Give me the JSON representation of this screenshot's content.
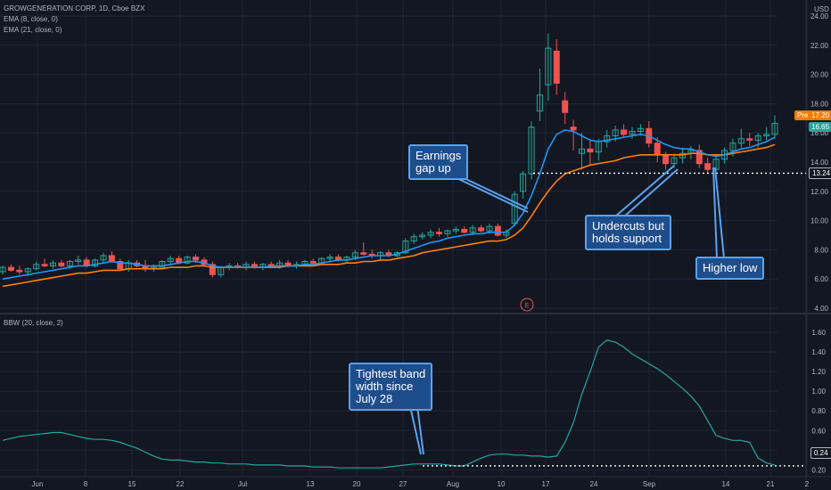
{
  "header": {
    "symbol_line": "GROWGENERATION CORP, 1D, Cboe BZX",
    "indicator_1": "EMA (8, close, 0)",
    "indicator_2": "EMA (21, close, 0)",
    "lower_indicator": "BBW (20, close, 2)",
    "currency": "USD"
  },
  "tags": {
    "pre_label": "Pre",
    "pre_price": "17.20",
    "last_price": "16.65",
    "support_level": "13.24",
    "bbw_level": "0.24"
  },
  "callouts": {
    "earnings": "Earnings\ngap up",
    "undercuts": "Undercuts but\nholds support",
    "higher_low": "Higher low",
    "tightest": "Tightest band\nwidth since\nJuly 28"
  },
  "earnings_marker": "E",
  "colors": {
    "background": "#131722",
    "up": "#26a69a",
    "down": "#ef5350",
    "ema8": "#2196f3",
    "ema21": "#ff7f0e",
    "bbw": "#26a69a",
    "callout_bg": "#1e4d8c",
    "callout_border": "#5aa2f0",
    "pre_tag": "#f57c00",
    "last_tag": "#26a69a"
  },
  "chart_data": [
    {
      "type": "candlestick",
      "y_axis_ticks": [
        "4.00",
        "6.00",
        "8.00",
        "10.00",
        "12.00",
        "14.00",
        "16.00",
        "18.00",
        "20.00",
        "22.00",
        "24.00"
      ],
      "ylim": [
        4,
        24
      ],
      "x_axis_ticks": [
        "Jun",
        "8",
        "15",
        "22",
        "Jul",
        "13",
        "20",
        "27",
        "Aug",
        "10",
        "17",
        "24",
        "Sep",
        "14",
        "21",
        "2"
      ],
      "horizontal_level": 13.24,
      "ohlc": [
        [
          6.5,
          6.9,
          6.3,
          6.8
        ],
        [
          6.8,
          7.0,
          6.5,
          6.6
        ],
        [
          6.6,
          6.9,
          6.3,
          6.5
        ],
        [
          6.5,
          6.8,
          6.2,
          6.7
        ],
        [
          6.7,
          7.2,
          6.6,
          7.0
        ],
        [
          7.0,
          7.4,
          6.8,
          6.9
        ],
        [
          6.9,
          7.3,
          6.7,
          7.1
        ],
        [
          7.1,
          7.3,
          6.8,
          6.9
        ],
        [
          6.9,
          7.3,
          6.7,
          7.2
        ],
        [
          7.2,
          7.6,
          7.0,
          7.3
        ],
        [
          7.3,
          7.5,
          6.8,
          6.9
        ],
        [
          6.9,
          7.4,
          6.8,
          7.3
        ],
        [
          7.3,
          7.8,
          7.1,
          7.6
        ],
        [
          7.6,
          7.9,
          7.1,
          7.2
        ],
        [
          7.2,
          7.4,
          6.6,
          6.7
        ],
        [
          6.7,
          7.3,
          6.5,
          7.1
        ],
        [
          7.1,
          7.3,
          6.8,
          6.9
        ],
        [
          6.9,
          7.3,
          6.5,
          6.7
        ],
        [
          6.7,
          7.0,
          6.5,
          6.8
        ],
        [
          6.8,
          7.3,
          6.8,
          7.2
        ],
        [
          7.2,
          7.6,
          7.0,
          7.4
        ],
        [
          7.4,
          7.6,
          7.0,
          7.1
        ],
        [
          7.1,
          7.6,
          7.0,
          7.5
        ],
        [
          7.5,
          7.7,
          7.1,
          7.3
        ],
        [
          7.3,
          7.5,
          6.9,
          7.0
        ],
        [
          7.0,
          7.2,
          6.1,
          6.3
        ],
        [
          6.3,
          6.9,
          6.1,
          6.8
        ],
        [
          6.8,
          7.1,
          6.6,
          6.9
        ],
        [
          6.9,
          7.1,
          6.7,
          6.8
        ],
        [
          6.8,
          7.2,
          6.6,
          7.0
        ],
        [
          7.0,
          7.2,
          6.7,
          6.8
        ],
        [
          6.8,
          7.1,
          6.6,
          7.0
        ],
        [
          7.0,
          7.2,
          6.8,
          6.9
        ],
        [
          6.9,
          7.3,
          6.7,
          7.1
        ],
        [
          7.1,
          7.3,
          6.8,
          6.9
        ],
        [
          6.9,
          7.2,
          6.7,
          7.0
        ],
        [
          7.0,
          7.3,
          6.9,
          7.2
        ],
        [
          7.2,
          7.4,
          7.0,
          7.1
        ],
        [
          7.1,
          7.5,
          7.0,
          7.4
        ],
        [
          7.4,
          7.7,
          7.2,
          7.5
        ],
        [
          7.5,
          7.7,
          7.2,
          7.3
        ],
        [
          7.3,
          7.6,
          7.1,
          7.5
        ],
        [
          7.5,
          8.0,
          7.3,
          7.8
        ],
        [
          7.8,
          8.5,
          7.6,
          7.7
        ],
        [
          7.7,
          8.0,
          7.4,
          7.6
        ],
        [
          7.6,
          7.9,
          7.3,
          7.8
        ],
        [
          7.8,
          8.0,
          7.5,
          7.6
        ],
        [
          7.6,
          7.9,
          7.5,
          7.8
        ],
        [
          7.8,
          8.8,
          7.7,
          8.6
        ],
        [
          8.6,
          9.1,
          8.4,
          8.9
        ],
        [
          8.9,
          9.2,
          8.7,
          9.0
        ],
        [
          9.0,
          9.4,
          8.8,
          9.2
        ],
        [
          9.2,
          9.5,
          8.9,
          9.1
        ],
        [
          9.1,
          9.4,
          8.9,
          9.3
        ],
        [
          9.3,
          9.6,
          9.1,
          9.4
        ],
        [
          9.4,
          9.6,
          9.1,
          9.2
        ],
        [
          9.2,
          9.7,
          9.0,
          9.5
        ],
        [
          9.5,
          9.7,
          9.2,
          9.3
        ],
        [
          9.3,
          9.8,
          9.1,
          9.6
        ],
        [
          9.6,
          9.8,
          8.9,
          9.0
        ],
        [
          9.0,
          9.4,
          8.8,
          9.2
        ],
        [
          9.8,
          12.0,
          9.6,
          11.8
        ],
        [
          12.0,
          13.4,
          11.5,
          13.2
        ],
        [
          13.2,
          16.8,
          12.8,
          16.4
        ],
        [
          17.5,
          20.4,
          16.8,
          18.6
        ],
        [
          19.3,
          22.8,
          18.2,
          21.8
        ],
        [
          21.6,
          22.4,
          18.6,
          19.4
        ],
        [
          18.2,
          18.8,
          16.6,
          17.4
        ],
        [
          16.4,
          16.9,
          14.8,
          16.2
        ],
        [
          14.6,
          16.0,
          13.5,
          14.9
        ],
        [
          14.9,
          15.6,
          13.8,
          14.7
        ],
        [
          14.7,
          15.6,
          14.1,
          15.4
        ],
        [
          15.4,
          16.2,
          15.0,
          15.8
        ],
        [
          15.8,
          16.5,
          15.4,
          16.2
        ],
        [
          16.2,
          16.6,
          15.7,
          15.9
        ],
        [
          15.9,
          16.4,
          15.6,
          16.1
        ],
        [
          16.1,
          16.6,
          15.8,
          16.3
        ],
        [
          16.3,
          16.8,
          15.0,
          15.3
        ],
        [
          15.3,
          15.7,
          14.0,
          14.5
        ],
        [
          14.5,
          14.7,
          13.5,
          13.9
        ],
        [
          13.9,
          14.6,
          13.6,
          14.3
        ],
        [
          14.3,
          15.0,
          13.9,
          14.6
        ],
        [
          14.6,
          15.1,
          14.2,
          14.8
        ],
        [
          14.8,
          15.2,
          13.6,
          13.9
        ],
        [
          13.9,
          14.3,
          13.2,
          13.5
        ],
        [
          13.5,
          14.4,
          13.3,
          14.2
        ],
        [
          14.2,
          15.0,
          13.9,
          14.8
        ],
        [
          14.8,
          15.6,
          14.4,
          15.3
        ],
        [
          15.3,
          16.3,
          15.0,
          15.6
        ],
        [
          15.6,
          16.0,
          15.1,
          15.5
        ],
        [
          15.5,
          16.0,
          15.0,
          15.8
        ],
        [
          15.8,
          16.4,
          15.5,
          15.9
        ],
        [
          15.9,
          17.2,
          15.6,
          16.65
        ]
      ],
      "ema8": [
        6.0,
        6.1,
        6.2,
        6.3,
        6.4,
        6.5,
        6.6,
        6.7,
        6.8,
        6.9,
        6.9,
        7.0,
        7.1,
        7.2,
        7.1,
        7.1,
        7.0,
        6.9,
        6.9,
        6.9,
        7.0,
        7.1,
        7.2,
        7.2,
        7.1,
        6.9,
        6.8,
        6.8,
        6.8,
        6.8,
        6.8,
        6.8,
        6.9,
        6.9,
        6.9,
        6.9,
        7.0,
        7.0,
        7.1,
        7.2,
        7.3,
        7.3,
        7.4,
        7.5,
        7.6,
        7.6,
        7.6,
        7.7,
        7.9,
        8.1,
        8.3,
        8.5,
        8.6,
        8.8,
        8.9,
        9.0,
        9.1,
        9.1,
        9.2,
        9.2,
        9.2,
        9.7,
        10.5,
        11.7,
        13.2,
        14.9,
        15.9,
        16.2,
        16.1,
        15.8,
        15.5,
        15.4,
        15.5,
        15.6,
        15.7,
        15.8,
        15.9,
        15.8,
        15.5,
        15.2,
        15.0,
        14.9,
        14.9,
        14.7,
        14.5,
        14.4,
        14.5,
        14.7,
        14.9,
        15.0,
        15.2,
        15.4,
        15.7
      ],
      "ema21": [
        5.5,
        5.6,
        5.7,
        5.8,
        5.9,
        6.0,
        6.1,
        6.2,
        6.3,
        6.4,
        6.4,
        6.5,
        6.6,
        6.6,
        6.6,
        6.7,
        6.7,
        6.7,
        6.7,
        6.7,
        6.8,
        6.8,
        6.8,
        6.9,
        6.9,
        6.8,
        6.8,
        6.8,
        6.8,
        6.8,
        6.8,
        6.8,
        6.8,
        6.8,
        6.9,
        6.9,
        6.9,
        6.9,
        7.0,
        7.0,
        7.0,
        7.1,
        7.1,
        7.2,
        7.2,
        7.3,
        7.3,
        7.4,
        7.5,
        7.6,
        7.8,
        7.9,
        8.0,
        8.1,
        8.2,
        8.3,
        8.4,
        8.5,
        8.6,
        8.6,
        8.7,
        9.0,
        9.5,
        10.3,
        11.2,
        12.0,
        12.7,
        13.2,
        13.4,
        13.6,
        13.8,
        13.9,
        14.0,
        14.1,
        14.3,
        14.4,
        14.5,
        14.5,
        14.5,
        14.5,
        14.5,
        14.5,
        14.6,
        14.6,
        14.5,
        14.5,
        14.5,
        14.6,
        14.7,
        14.8,
        14.9,
        15.0,
        15.2
      ]
    },
    {
      "type": "line",
      "name": "BBW (20, close, 2)",
      "y_axis_ticks": [
        "0.20",
        "0.40",
        "0.60",
        "0.80",
        "1.00",
        "1.20",
        "1.40",
        "1.60"
      ],
      "ylim": [
        0.14,
        1.7
      ],
      "horizontal_level": 0.24,
      "values": [
        0.5,
        0.52,
        0.54,
        0.55,
        0.56,
        0.57,
        0.58,
        0.58,
        0.56,
        0.54,
        0.52,
        0.51,
        0.51,
        0.5,
        0.48,
        0.45,
        0.42,
        0.38,
        0.34,
        0.31,
        0.3,
        0.3,
        0.29,
        0.28,
        0.28,
        0.27,
        0.27,
        0.26,
        0.26,
        0.26,
        0.25,
        0.25,
        0.25,
        0.25,
        0.24,
        0.24,
        0.24,
        0.23,
        0.23,
        0.23,
        0.22,
        0.22,
        0.22,
        0.22,
        0.22,
        0.22,
        0.23,
        0.24,
        0.25,
        0.26,
        0.26,
        0.26,
        0.26,
        0.25,
        0.24,
        0.24,
        0.28,
        0.32,
        0.35,
        0.36,
        0.36,
        0.35,
        0.35,
        0.34,
        0.34,
        0.33,
        0.34,
        0.48,
        0.68,
        0.97,
        1.2,
        1.45,
        1.52,
        1.5,
        1.45,
        1.38,
        1.33,
        1.28,
        1.23,
        1.17,
        1.1,
        1.03,
        0.95,
        0.85,
        0.7,
        0.55,
        0.52,
        0.5,
        0.5,
        0.48,
        0.32,
        0.27,
        0.25
      ]
    }
  ]
}
